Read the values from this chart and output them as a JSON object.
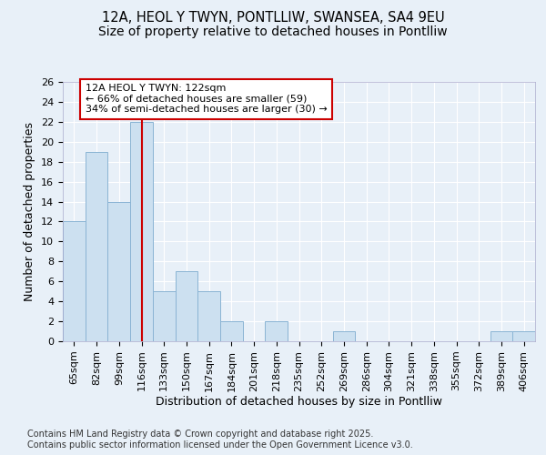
{
  "title1": "12A, HEOL Y TWYN, PONTLLIW, SWANSEA, SA4 9EU",
  "title2": "Size of property relative to detached houses in Pontlliw",
  "xlabel": "Distribution of detached houses by size in Pontlliw",
  "ylabel": "Number of detached properties",
  "categories": [
    "65sqm",
    "82sqm",
    "99sqm",
    "116sqm",
    "133sqm",
    "150sqm",
    "167sqm",
    "184sqm",
    "201sqm",
    "218sqm",
    "235sqm",
    "252sqm",
    "269sqm",
    "286sqm",
    "304sqm",
    "321sqm",
    "338sqm",
    "355sqm",
    "372sqm",
    "389sqm",
    "406sqm"
  ],
  "values": [
    12,
    19,
    14,
    22,
    5,
    7,
    5,
    2,
    0,
    2,
    0,
    0,
    1,
    0,
    0,
    0,
    0,
    0,
    0,
    1,
    1
  ],
  "bar_color": "#cce0f0",
  "bar_edge_color": "#8ab4d4",
  "red_line_x": 3.5,
  "annotation_text": "12A HEOL Y TWYN: 122sqm\n← 66% of detached houses are smaller (59)\n34% of semi-detached houses are larger (30) →",
  "annotation_box_color": "#ffffff",
  "annotation_box_edge_color": "#cc0000",
  "footer_text": "Contains HM Land Registry data © Crown copyright and database right 2025.\nContains public sector information licensed under the Open Government Licence v3.0.",
  "ylim": [
    0,
    26
  ],
  "yticks": [
    0,
    2,
    4,
    6,
    8,
    10,
    12,
    14,
    16,
    18,
    20,
    22,
    24,
    26
  ],
  "background_color": "#e8f0f8",
  "grid_color": "#ffffff",
  "title1_fontsize": 10.5,
  "title2_fontsize": 10,
  "label_fontsize": 9,
  "tick_fontsize": 8,
  "ann_fontsize": 8,
  "footer_fontsize": 7
}
